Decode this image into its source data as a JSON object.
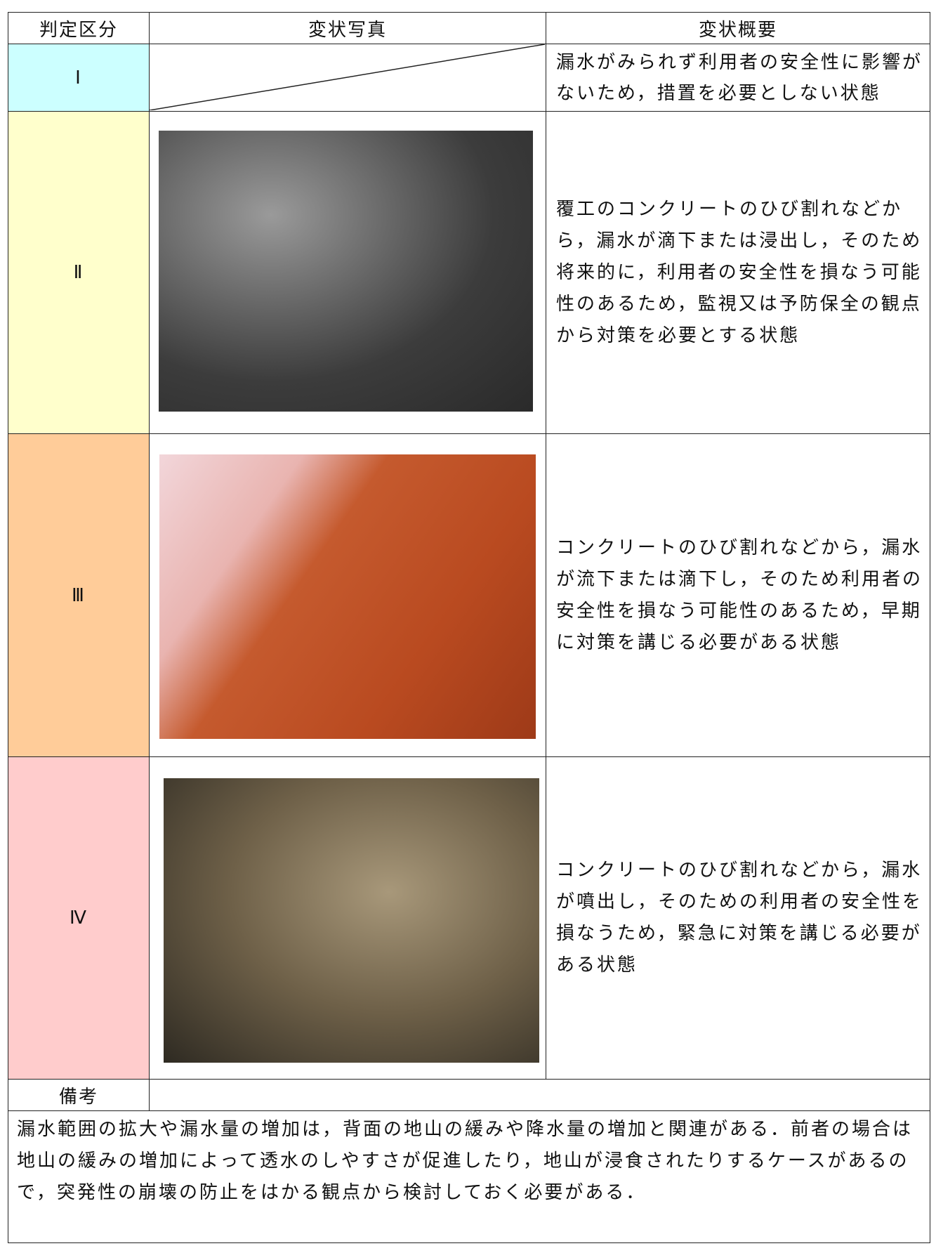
{
  "header": {
    "grade": "判定区分",
    "photo": "変状写真",
    "summary": "変状概要"
  },
  "rows": [
    {
      "grade": "Ⅰ",
      "description": "漏水がみられず利用者の安全性に影響がないため，措置を必要としない状態"
    },
    {
      "grade": "Ⅱ",
      "description": "覆工のコンクリートのひび割れなどから，漏水が滴下または浸出し，そのため将来的に，利用者の安全性を損なう可能性のあるため，監視又は予防保全の観点から対策を必要とする状態"
    },
    {
      "grade": "Ⅲ",
      "description": "コンクリートのひび割れなどから，漏水が流下または滴下し，そのため利用者の安全性を損なう可能性のあるため，早期に対策を講じる必要がある状態"
    },
    {
      "grade": "Ⅳ",
      "description": "コンクリートのひび割れなどから，漏水が噴出し，そのための利用者の安全性を損なうため，緊急に対策を講じる必要がある状態"
    }
  ],
  "remarks": {
    "label": "備考",
    "text": "漏水範囲の拡大や漏水量の増加は，背面の地山の緩みや降水量の増加と関連がある．前者の場合は地山の緩みの増加によって透水のしやすさが促進したり，地山が浸食されたりするケースがあるので，突発性の崩壊の防止をはかる観点から検討しておく必要がある．"
  }
}
